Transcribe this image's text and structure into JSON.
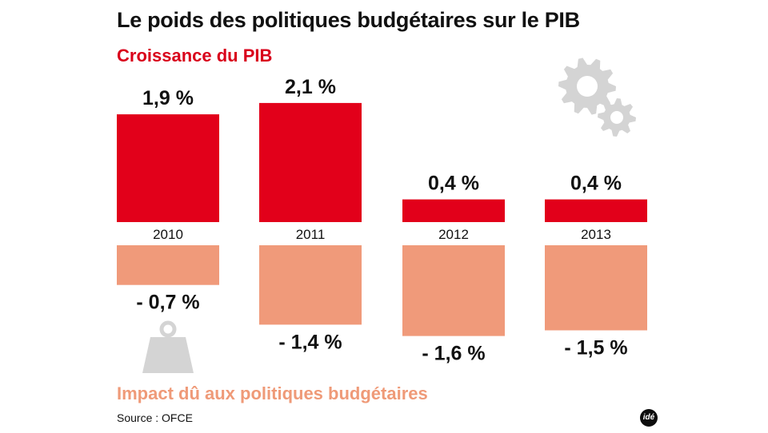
{
  "title": "Le poids des politiques budgétaires sur le PIB",
  "source": "Source : OFCE",
  "logo_text": "idé",
  "colors": {
    "growth": "#e2001a",
    "impact": "#f09a7a",
    "icons": "#d4d4d4",
    "text": "#111111",
    "subtitle_growth": "#d9001b",
    "subtitle_impact": "#ef9a78"
  },
  "icons": [
    "gears-icon",
    "weight-icon"
  ],
  "chart_data": {
    "type": "bar",
    "title": "Le poids des politiques budgétaires sur le PIB",
    "categories": [
      "2010",
      "2011",
      "2012",
      "2013"
    ],
    "series": [
      {
        "name": "Croissance du PIB",
        "values": [
          1.9,
          2.1,
          0.4,
          0.4
        ],
        "labels": [
          "1,9 %",
          "2,1 %",
          "0,4 %",
          "0,4 %"
        ]
      },
      {
        "name": "Impact dû aux politiques budgétaires",
        "values": [
          -0.7,
          -1.4,
          -1.6,
          -1.5
        ],
        "labels": [
          "- 0,7 %",
          "- 1,4 %",
          "- 1,6 %",
          "- 1,5 %"
        ]
      }
    ],
    "xlabel": "",
    "ylabel": "",
    "unit": "%",
    "grid": false,
    "legend": "none (series named by colored subtitles: top and bottom)"
  }
}
